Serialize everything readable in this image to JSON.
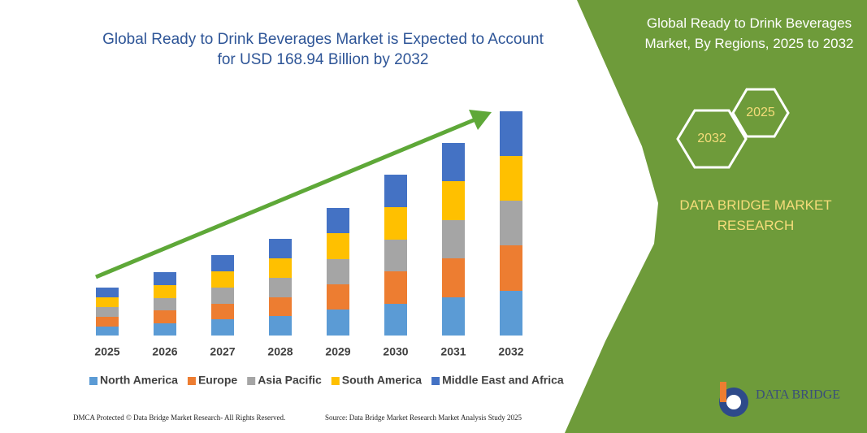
{
  "chart_data": {
    "type": "stacked-bar",
    "title": "Global Ready to Drink Beverages Market is Expected to Account for USD 168.94 Billion by 2032",
    "categories": [
      "2025",
      "2026",
      "2027",
      "2028",
      "2029",
      "2030",
      "2031",
      "2032"
    ],
    "series": [
      {
        "name": "North America",
        "color": "#5b9bd5",
        "values": [
          11,
          15,
          20,
          24,
          32,
          39,
          47,
          55
        ]
      },
      {
        "name": "Europe",
        "color": "#ed7d31",
        "values": [
          12,
          16,
          19,
          23,
          31,
          40,
          48,
          56
        ]
      },
      {
        "name": "Asia Pacific",
        "color": "#a5a5a5",
        "values": [
          12,
          15,
          20,
          24,
          31,
          39,
          47,
          55
        ]
      },
      {
        "name": "South America",
        "color": "#ffc000",
        "values": [
          12,
          16,
          20,
          24,
          32,
          40,
          48,
          55
        ]
      },
      {
        "name": "Middle East and Africa",
        "color": "#4472c4",
        "values": [
          12,
          16,
          20,
          24,
          31,
          40,
          47,
          55
        ]
      }
    ],
    "ylim": [
      0,
      276
    ],
    "legend": "bottom"
  },
  "panel": {
    "title": "Global Ready to Drink Beverages Market, By Regions, 2025 to 2032",
    "hex_labels": [
      "2025",
      "2032"
    ],
    "brand": "DATA BRIDGE MARKET RESEARCH",
    "logo": "DATA BRIDGE"
  },
  "footer": {
    "left": "DMCA Protected © Data Bridge Market Research- All Rights Reserved.",
    "right": "Source: Data Bridge Market Research Market Analysis Study 2025"
  }
}
